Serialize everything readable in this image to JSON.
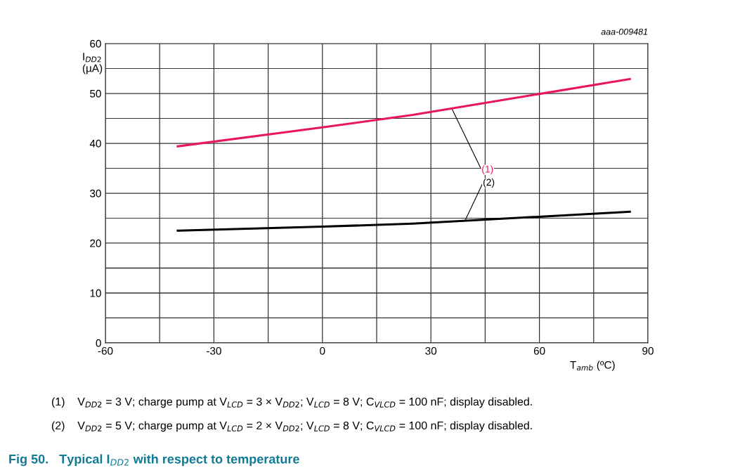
{
  "chart_data": {
    "type": "line",
    "title": "Fig 50.   Typical I$_{DD2}$ with respect to temperature",
    "xlabel": "T$_{amb}$ (ºC)",
    "ylabel": "I$_{DD2}$\n(µA)",
    "x": [
      -40,
      0,
      25,
      85
    ],
    "series": [
      {
        "color": "#e8175d",
        "values": [
          39.4,
          43.2,
          45.7,
          52.9
        ]
      },
      {
        "color": "#000000",
        "values": [
          22.5,
          23.3,
          23.9,
          26.3
        ]
      }
    ],
    "xlim": [
      -60,
      90
    ],
    "xticks": [
      -60,
      {
        "value": -45,
        "label": null
      },
      -30,
      {
        "value": -15,
        "label": null
      },
      0,
      {
        "value": 15,
        "label": null
      },
      30,
      {
        "value": 45,
        "label": null
      },
      60,
      {
        "value": 75,
        "label": null
      },
      90
    ],
    "ylim": [
      0,
      60
    ],
    "yticks": [
      0,
      {
        "value": 5,
        "label": null
      },
      10,
      {
        "value": 15,
        "label": null
      },
      20,
      {
        "value": 25,
        "label": null
      },
      30,
      {
        "value": 35,
        "label": null
      },
      40,
      {
        "value": 45,
        "label": null
      },
      50,
      {
        "value": 55,
        "label": null
      },
      60
    ],
    "grid": true,
    "legend": false,
    "marker": "none",
    "line_style": "solid",
    "annotations": [
      {
        "text": "(1)",
        "x": 35.9,
        "y": 46.8
      },
      {
        "text": "(2)",
        "x": 39.5,
        "y": 24.6
      },
      "aaa-009481",
      "(1)    V$_{DD2}$ = 3 V; charge pump at V$_{LCD}$ = 3 × V$_{DD2}$; V$_{LCD}$ = 8 V; C$_{VLCD}$ = 100 nF; display disabled.",
      "(2)    V$_{DD2}$ = 5 V; charge pump at V$_{LCD}$ = 2 × V$_{DD2}$; V$_{LCD}$ = 8 V; C$_{VLCD}$ = 100 nF; display disabled."
    ]
  }
}
